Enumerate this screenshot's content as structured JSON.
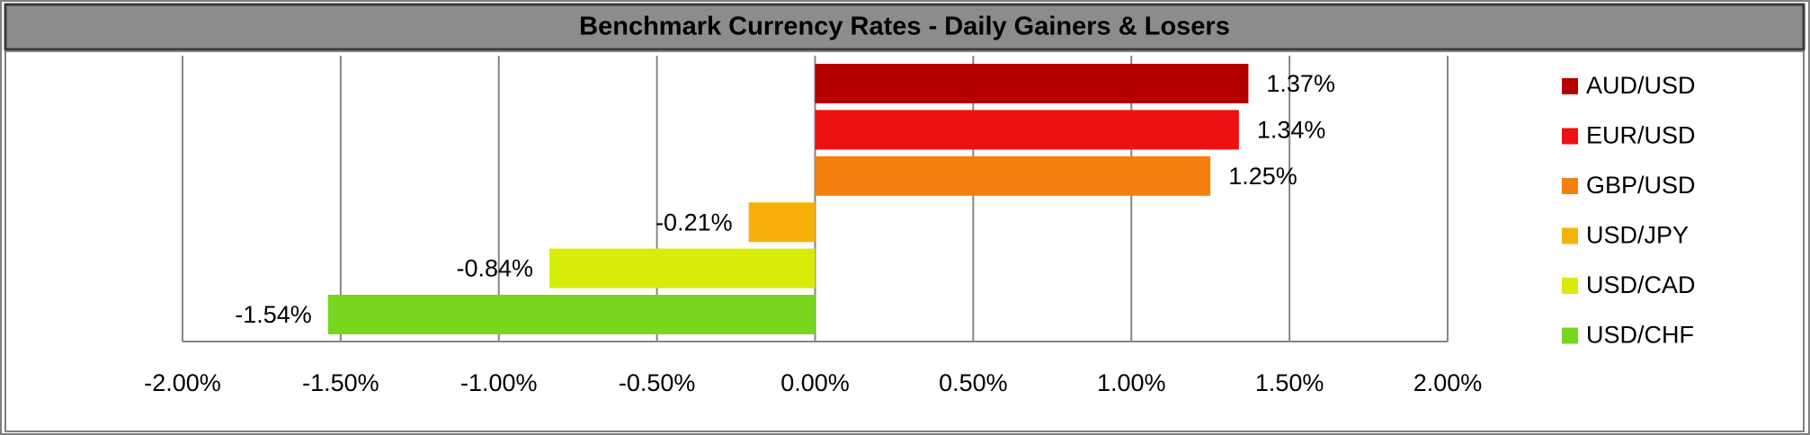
{
  "chart_data": {
    "type": "bar",
    "orientation": "horizontal",
    "title": "Benchmark Currency Rates - Daily Gainers & Losers",
    "series": [
      {
        "name": "AUD/USD",
        "color": "#b50000",
        "values": [
          1.37
        ],
        "value_labels": [
          "1.37%"
        ]
      },
      {
        "name": "EUR/USD",
        "color": "#ee1111",
        "values": [
          1.34
        ],
        "value_labels": [
          "1.34%"
        ]
      },
      {
        "name": "GBP/USD",
        "color": "#f57f0c",
        "values": [
          1.25
        ],
        "value_labels": [
          "1.25%"
        ]
      },
      {
        "name": "USD/JPY",
        "color": "#f8b00a",
        "values": [
          -0.21
        ],
        "value_labels": [
          "-0.21%"
        ]
      },
      {
        "name": "USD/CAD",
        "color": "#d8ec0c",
        "values": [
          -0.84
        ],
        "value_labels": [
          "-0.84%"
        ]
      },
      {
        "name": "USD/CHF",
        "color": "#78d61e",
        "values": [
          -1.54
        ],
        "value_labels": [
          "-1.54%"
        ]
      }
    ],
    "xlim": [
      -2,
      2
    ],
    "xticks": [
      {
        "value": -2,
        "label": "-2.00%"
      },
      {
        "value": -1.5,
        "label": "-1.50%"
      },
      {
        "value": -1,
        "label": "-1.00%"
      },
      {
        "value": -0.5,
        "label": "-0.50%"
      },
      {
        "value": 0,
        "label": "0.00%"
      },
      {
        "value": 0.5,
        "label": "0.50%"
      },
      {
        "value": 1,
        "label": "1.00%"
      },
      {
        "value": 1.5,
        "label": "1.50%"
      },
      {
        "value": 2,
        "label": "2.00%"
      }
    ],
    "grid": true,
    "legend": "right"
  }
}
